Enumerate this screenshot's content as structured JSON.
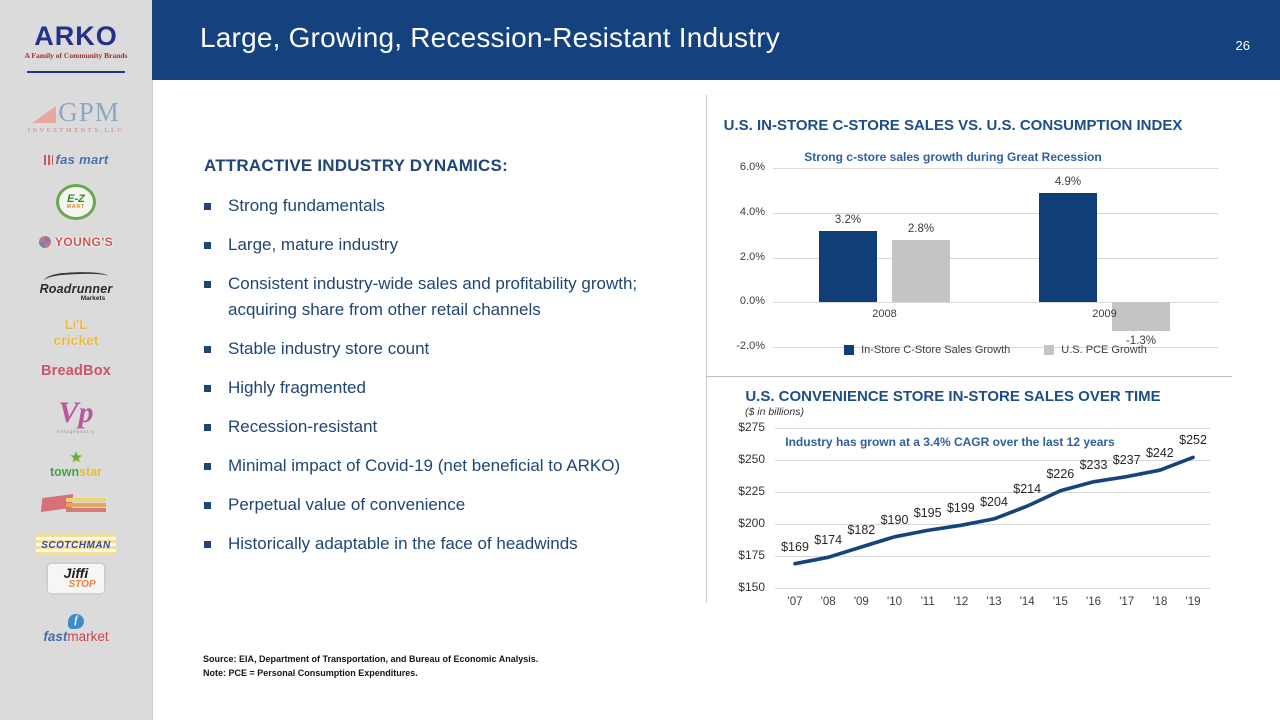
{
  "slide": {
    "header": {
      "title": "Large, Growing, Recession-Resistant Industry",
      "page_number": "26"
    },
    "sidebar": {
      "arko": {
        "name": "ARKO",
        "tagline": "A Family of Community Brands"
      },
      "gpm": {
        "name": "GPM",
        "subtext": "INVESTMENTS,LLC"
      },
      "fas_mart": {
        "name": "fas mart"
      },
      "ez_mart": {
        "name": "E-Z",
        "subtext": "MART"
      },
      "youngs": {
        "name": "YOUNG'S"
      },
      "roadrunner": {
        "name": "Roadrunner",
        "subtext": "Markets"
      },
      "lil_cricket": {
        "line1": "Li'L",
        "line2": "cricket"
      },
      "breadbox": {
        "name": "BreadBox"
      },
      "village_pantry": {
        "name": "Vp",
        "subtext": "villagepantry"
      },
      "townstar": {
        "star": "★",
        "part1": "town",
        "part2": "star"
      },
      "scotchman": {
        "name": "SCOTCHMAN"
      },
      "jiffi_stop": {
        "line1": "Jiffi",
        "line2": "STOP"
      },
      "fastmarket": {
        "icon_letter": "f",
        "part1": "fast",
        "part2": "market"
      }
    },
    "body": {
      "heading": "ATTRACTIVE INDUSTRY DYNAMICS:",
      "bullets": [
        "Strong fundamentals",
        "Large, mature industry",
        "Consistent industry-wide sales and profitability growth; acquiring share from other retail channels",
        "Stable industry store count",
        "Highly fragmented",
        "Recession-resistant",
        "Minimal impact of Covid-19 (net beneficial to ARKO)",
        "Perpetual value of convenience",
        "Historically adaptable in the face of headwinds"
      ],
      "source_line": "Source: EIA, Department of Transportation, and Bureau of Economic Analysis.",
      "note_line": "Note:  PCE = Personal Consumption Expenditures."
    },
    "colors": {
      "header_bg": "#15427e",
      "text_blue": "#1f4577",
      "chart_title_blue": "#1c4e8a",
      "subtitle_blue": "#2e5f9f",
      "bar_blue": "#113e79",
      "bar_gray": "#c4c4c4",
      "line_blue": "#16437e",
      "sidebar_bg": "#dcdbdb"
    }
  },
  "chart_data": [
    {
      "type": "bar",
      "title": "U.S. IN-STORE C-STORE SALES VS. U.S. CONSUMPTION INDEX",
      "subtitle": "Strong c-store sales growth during Great Recession",
      "categories": [
        "2008",
        "2009"
      ],
      "series": [
        {
          "name": "In-Store C-Store Sales Growth",
          "color": "#113e79",
          "values": [
            3.2,
            4.9
          ],
          "labels": [
            "3.2%",
            "4.9%"
          ]
        },
        {
          "name": "U.S. PCE Growth",
          "color": "#c4c4c4",
          "values": [
            2.8,
            -1.3
          ],
          "labels": [
            "2.8%",
            "-1.3%"
          ]
        }
      ],
      "y_ticks": [
        "6.0%",
        "4.0%",
        "2.0%",
        "0.0%",
        "-2.0%"
      ],
      "y_tick_values": [
        6,
        4,
        2,
        0,
        -2
      ],
      "ylim": [
        -2,
        6
      ],
      "grid": true,
      "legend_position": "bottom"
    },
    {
      "type": "line",
      "title": "U.S. CONVENIENCE STORE IN-STORE SALES OVER TIME",
      "units_note": "($ in billions)",
      "annotation": "Industry has grown at a 3.4% CAGR over the last 12 years",
      "x": [
        "'07",
        "'08",
        "'09",
        "'10",
        "'11",
        "'12",
        "'13",
        "'14",
        "'15",
        "'16",
        "'17",
        "'18",
        "'19"
      ],
      "values": [
        169,
        174,
        182,
        190,
        195,
        199,
        204,
        214,
        226,
        233,
        237,
        242,
        252
      ],
      "labels": [
        "$169",
        "$174",
        "$182",
        "$190",
        "$195",
        "$199",
        "$204",
        "$214",
        "$226",
        "$233",
        "$237",
        "$242",
        "$252"
      ],
      "y_ticks": [
        "$275",
        "$250",
        "$225",
        "$200",
        "$175",
        "$150"
      ],
      "y_tick_values": [
        275,
        250,
        225,
        200,
        175,
        150
      ],
      "ylim": [
        150,
        275
      ],
      "line_color": "#16437e",
      "grid": true,
      "legend_position": "none"
    }
  ]
}
